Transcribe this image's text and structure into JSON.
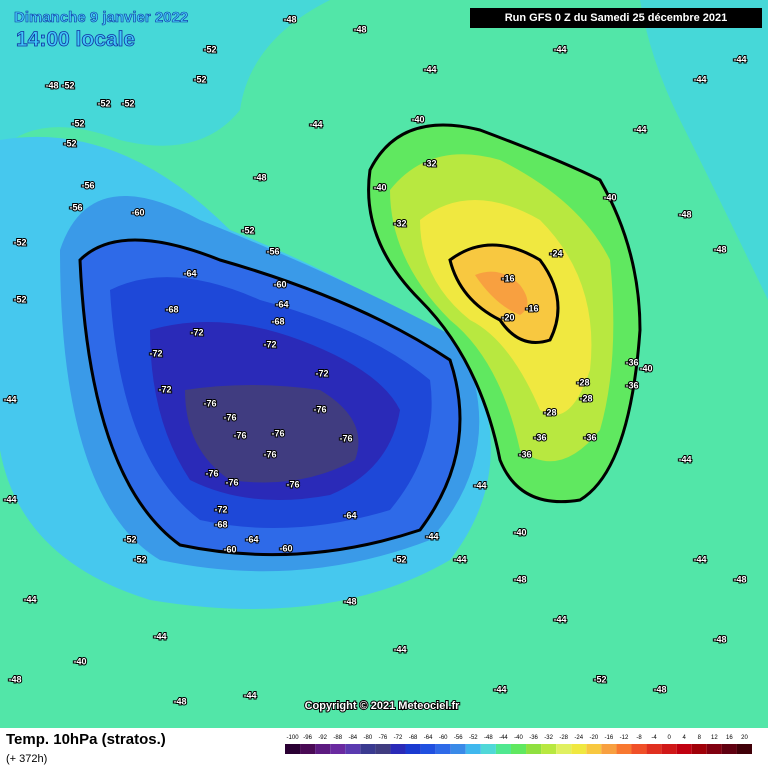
{
  "header": {
    "date": "Dimanche 9 janvier 2022",
    "time": "14:00 locale",
    "run": "Run GFS 0 Z du Samedi 25 décembre 2021"
  },
  "copyright": "Copyright © 2021 Meteociel.fr",
  "footer": {
    "title": "Temp. 10hPa (stratos.)",
    "lead": "(+ 372h)"
  },
  "scale": {
    "values": [
      -100,
      -96,
      -92,
      -88,
      -84,
      -80,
      -76,
      -72,
      -68,
      -64,
      -60,
      -56,
      -52,
      -48,
      -44,
      -40,
      -36,
      -32,
      -28,
      -24,
      -20,
      -16,
      -12,
      -8,
      -4,
      0,
      4,
      8,
      12,
      16,
      20
    ],
    "colors": [
      "#2a0033",
      "#4a0a55",
      "#5c1a80",
      "#6a2aa0",
      "#5a3ab0",
      "#3a3a90",
      "#403c80",
      "#2a2ab8",
      "#1a3ad0",
      "#2050e0",
      "#2e6ae8",
      "#3a8ae8",
      "#40b8ee",
      "#50d8d8",
      "#50e890",
      "#60e860",
      "#90e040",
      "#b8e840",
      "#e0f060",
      "#f0e840",
      "#f8c840",
      "#f8a040",
      "#f87830",
      "#f05028",
      "#e03020",
      "#d01818",
      "#c00010",
      "#a00008",
      "#800010",
      "#600010",
      "#400008"
    ]
  },
  "contour_labels": [
    -48,
    -52,
    -52,
    -52,
    -52,
    -52,
    -56,
    -56,
    -60,
    -52,
    -64,
    -68,
    -72,
    -72,
    -72,
    -76,
    -76,
    -76,
    -76,
    -76,
    -76,
    -76,
    -76,
    -76,
    -76,
    -72,
    -68,
    -64,
    -60,
    -60,
    -64,
    -60,
    -64,
    -68,
    -72,
    -72,
    -56,
    -52,
    -48,
    -44,
    -40,
    -40,
    -32,
    -32,
    -16,
    -16,
    -20,
    -24,
    -28,
    -28,
    -28,
    -36,
    -36,
    -36,
    -36,
    -36,
    -40,
    -40,
    -44,
    -40,
    -44,
    -44,
    -48,
    -48,
    -40,
    -44,
    -44,
    -44,
    -44,
    -52,
    -48,
    -48,
    -44,
    -48,
    -44,
    -48,
    -48,
    -44,
    -44,
    -44,
    -44,
    -44,
    -48,
    -48,
    -52,
    -52,
    -52,
    -44,
    -44,
    -44,
    -48,
    -52,
    -52,
    -52,
    -48,
    -44
  ]
}
